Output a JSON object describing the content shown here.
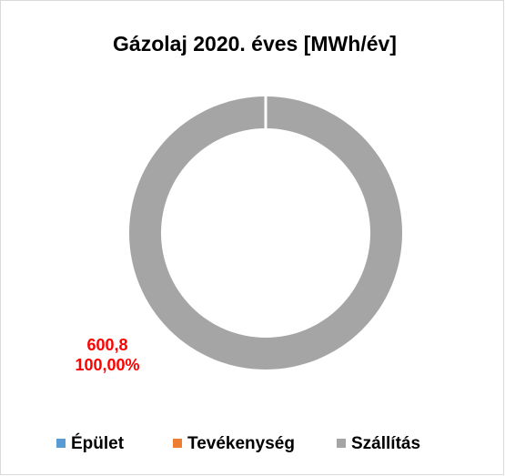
{
  "chart_data": {
    "type": "donut",
    "title": "Gázolaj 2020. éves [MWh/év]",
    "categories": [
      "Épület",
      "Tevékenység",
      "Szállítás"
    ],
    "values": [
      0,
      0,
      600.8
    ],
    "value_labels": [
      null,
      null,
      "600,8"
    ],
    "percents": [
      0,
      0,
      100
    ],
    "percent_labels": [
      null,
      null,
      "100,00%"
    ],
    "colors": [
      "#5b9bd5",
      "#ed7d31",
      "#a5a5a5"
    ],
    "label_color": "#ff0000",
    "legend": "bottom"
  }
}
